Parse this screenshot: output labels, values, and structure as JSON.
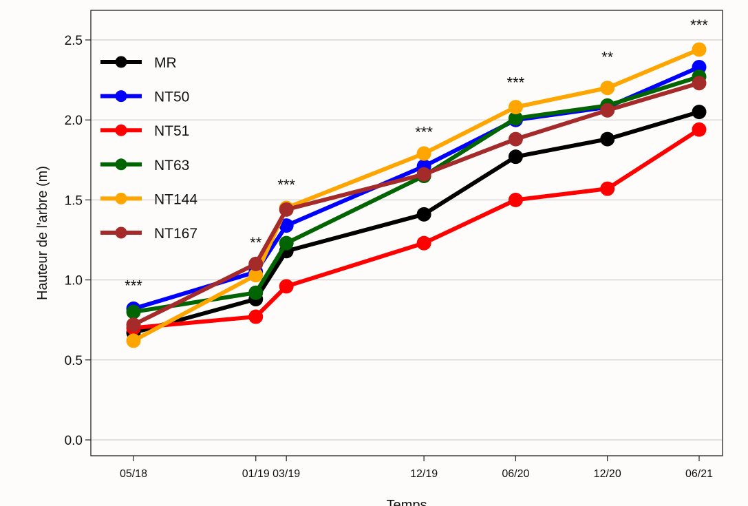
{
  "chart_data": {
    "type": "line",
    "xlabel": "Temps",
    "ylabel": "Hauteur de l'arbre (m)",
    "x_dates": [
      "2018-05",
      "2019-01",
      "2019-03",
      "2019-12",
      "2020-06",
      "2020-12",
      "2021-06"
    ],
    "categories": [
      "05/18",
      "01/19",
      "03/19",
      "12/19",
      "06/20",
      "12/20",
      "06/21"
    ],
    "ylim": [
      0,
      2.6
    ],
    "yticks": [
      "0.0",
      "0.5",
      "1.0",
      "1.5",
      "2.0",
      "2.5"
    ],
    "grid": "horizontal",
    "legend_position": "top-left",
    "series": [
      {
        "name": "MR",
        "color": "#000000",
        "values": [
          0.67,
          0.88,
          1.18,
          1.41,
          1.77,
          1.88,
          2.05
        ]
      },
      {
        "name": "NT50",
        "color": "#0000ff",
        "values": [
          0.82,
          1.05,
          1.34,
          1.71,
          2.0,
          2.08,
          2.33
        ]
      },
      {
        "name": "NT51",
        "color": "#ff0000",
        "values": [
          0.7,
          0.77,
          0.96,
          1.23,
          1.5,
          1.57,
          1.94
        ]
      },
      {
        "name": "NT63",
        "color": "#006400",
        "values": [
          0.8,
          0.92,
          1.23,
          1.65,
          2.01,
          2.09,
          2.27
        ]
      },
      {
        "name": "NT144",
        "color": "#ffa500",
        "values": [
          0.62,
          1.03,
          1.45,
          1.79,
          2.08,
          2.2,
          2.44
        ]
      },
      {
        "name": "NT167",
        "color": "#a52a2a",
        "values": [
          0.72,
          1.1,
          1.44,
          1.66,
          1.88,
          2.06,
          2.23
        ]
      }
    ],
    "annotations": [
      {
        "x": "05/18",
        "y": 1.0,
        "text": "***"
      },
      {
        "x": "01/19",
        "y": 1.27,
        "text": "**"
      },
      {
        "x": "03/19",
        "y": 1.63,
        "text": "***"
      },
      {
        "x": "12/19",
        "y": 1.96,
        "text": "***"
      },
      {
        "x": "06/20",
        "y": 2.27,
        "text": "***"
      },
      {
        "x": "12/20",
        "y": 2.43,
        "text": "**"
      },
      {
        "x": "06/21",
        "y": 2.63,
        "text": "***"
      }
    ]
  }
}
